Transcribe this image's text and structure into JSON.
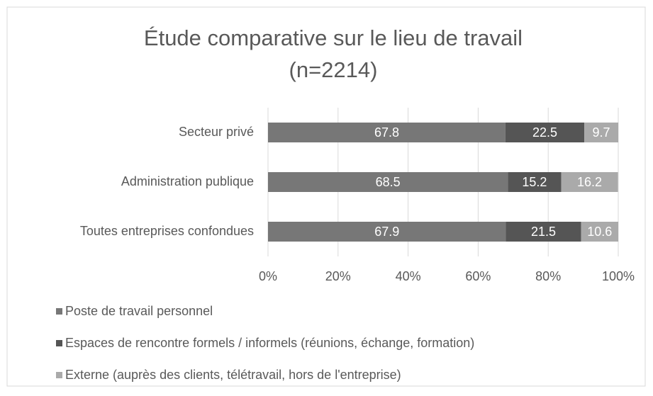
{
  "chart_data": {
    "type": "stacked-bar",
    "title": "Étude comparative sur le lieu de travail",
    "subtitle": "(n=2214)",
    "categories": [
      "Secteur privé",
      "Administration publique",
      "Toutes entreprises confondues"
    ],
    "series": [
      {
        "name": "Poste de travail personnel",
        "color": "#777777",
        "values": [
          67.8,
          68.5,
          67.9
        ]
      },
      {
        "name": "Espaces de rencontre formels / informels (réunions, échange, formation)",
        "color": "#555555",
        "values": [
          22.5,
          15.2,
          21.5
        ]
      },
      {
        "name": "Externe (auprès des clients, télétravail, hors de l'entreprise)",
        "color": "#aaaaaa",
        "values": [
          9.7,
          16.2,
          10.6
        ]
      }
    ],
    "xlim": [
      0,
      100
    ],
    "xticks": [
      {
        "value": 0,
        "label": "0%"
      },
      {
        "value": 20,
        "label": "20%"
      },
      {
        "value": 40,
        "label": "40%"
      },
      {
        "value": 60,
        "label": "60%"
      },
      {
        "value": 80,
        "label": "80%"
      },
      {
        "value": 100,
        "label": "100%"
      }
    ],
    "grid": true,
    "legend": "bottom"
  }
}
